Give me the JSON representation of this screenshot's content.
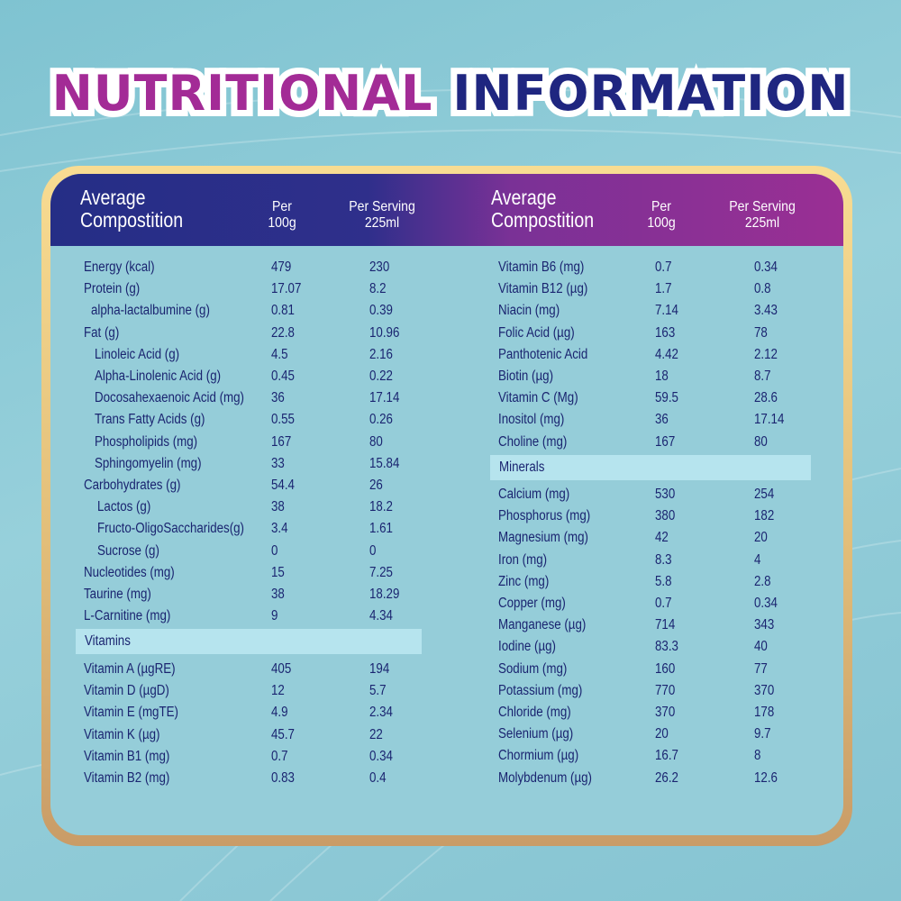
{
  "title": {
    "word1": "NUTRITIONAL",
    "word2": "INFORMATION"
  },
  "colors": {
    "magenta": "#a32b96",
    "navy": "#1f2680",
    "gold": "#e8c47f",
    "band": "#b6e4ee",
    "text": "#1a2470"
  },
  "left": {
    "header": {
      "label1": "Average",
      "label2": "Compostition",
      "per100a": "Per",
      "per100b": "100g",
      "servingA": "Per Serving",
      "servingB": "225ml"
    },
    "rows": [
      {
        "name": "Energy (kcal)",
        "per100": "479",
        "serving": "230",
        "indent": 0
      },
      {
        "name": "Protein (g)",
        "per100": "17.07",
        "serving": "8.2",
        "indent": 0
      },
      {
        "name": "alpha-lactalbumine (g)",
        "per100": "0.81",
        "serving": "0.39",
        "indent": 1
      },
      {
        "name": "Fat (g)",
        "per100": "22.8",
        "serving": "10.96",
        "indent": 0
      },
      {
        "name": "Linoleic Acid (g)",
        "per100": "4.5",
        "serving": "2.16",
        "indent": 2
      },
      {
        "name": "Alpha-Linolenic Acid (g)",
        "per100": "0.45",
        "serving": "0.22",
        "indent": 2
      },
      {
        "name": "Docosahexaenoic Acid (mg)",
        "per100": "36",
        "serving": "17.14",
        "indent": 2
      },
      {
        "name": "Trans Fatty Acids (g)",
        "per100": "0.55",
        "serving": "0.26",
        "indent": 2
      },
      {
        "name": "Phospholipids (mg)",
        "per100": "167",
        "serving": "80",
        "indent": 2
      },
      {
        "name": "Sphingomyelin (mg)",
        "per100": "33",
        "serving": "15.84",
        "indent": 2
      },
      {
        "name": "Carbohydrates (g)",
        "per100": "54.4",
        "serving": "26",
        "indent": 0
      },
      {
        "name": "Lactos (g)",
        "per100": "38",
        "serving": "18.2",
        "indent": 3
      },
      {
        "name": "Fructo-OligoSaccharides(g)",
        "per100": "3.4",
        "serving": "1.61",
        "indent": 3
      },
      {
        "name": "Sucrose (g)",
        "per100": "0",
        "serving": "0",
        "indent": 3
      },
      {
        "name": "Nucleotides (mg)",
        "per100": "15",
        "serving": "7.25",
        "indent": 0
      },
      {
        "name": "Taurine (mg)",
        "per100": "38",
        "serving": "18.29",
        "indent": 0
      },
      {
        "name": "L-Carnitine (mg)",
        "per100": "9",
        "serving": "4.34",
        "indent": 0
      }
    ],
    "section": "Vitamins",
    "rows2": [
      {
        "name": "Vitamin A (µgRE)",
        "per100": "405",
        "serving": "194",
        "indent": 0
      },
      {
        "name": "Vitamin D (µgD)",
        "per100": "12",
        "serving": "5.7",
        "indent": 0
      },
      {
        "name": "Vitamin E (mgTE)",
        "per100": "4.9",
        "serving": "2.34",
        "indent": 0
      },
      {
        "name": "Vitamin K (µg)",
        "per100": "45.7",
        "serving": "22",
        "indent": 0
      },
      {
        "name": "Vitamin B1 (mg)",
        "per100": "0.7",
        "serving": "0.34",
        "indent": 0
      },
      {
        "name": "Vitamin B2 (mg)",
        "per100": "0.83",
        "serving": "0.4",
        "indent": 0
      }
    ]
  },
  "right": {
    "header": {
      "label1": "Average",
      "label2": "Compostition",
      "per100a": "Per",
      "per100b": "100g",
      "servingA": "Per Serving",
      "servingB": "225ml"
    },
    "rows": [
      {
        "name": "Vitamin B6 (mg)",
        "per100": "0.7",
        "serving": "0.34"
      },
      {
        "name": "Vitamin B12 (µg)",
        "per100": "1.7",
        "serving": "0.8"
      },
      {
        "name": "Niacin (mg)",
        "per100": "7.14",
        "serving": "3.43"
      },
      {
        "name": "Folic Acid (µg)",
        "per100": "163",
        "serving": "78"
      },
      {
        "name": "Panthotenic Acid",
        "per100": "4.42",
        "serving": "2.12"
      },
      {
        "name": "Biotin (µg)",
        "per100": "18",
        "serving": "8.7"
      },
      {
        "name": "Vitamin C (Mg)",
        "per100": "59.5",
        "serving": "28.6"
      },
      {
        "name": "Inositol (mg)",
        "per100": "36",
        "serving": "17.14"
      },
      {
        "name": "Choline (mg)",
        "per100": "167",
        "serving": "80"
      }
    ],
    "section": "Minerals",
    "rows2": [
      {
        "name": "Calcium (mg)",
        "per100": "530",
        "serving": "254"
      },
      {
        "name": "Phosphorus (mg)",
        "per100": "380",
        "serving": "182"
      },
      {
        "name": "Magnesium (mg)",
        "per100": "42",
        "serving": "20"
      },
      {
        "name": "Iron (mg)",
        "per100": "8.3",
        "serving": "4"
      },
      {
        "name": "Zinc (mg)",
        "per100": "5.8",
        "serving": "2.8"
      },
      {
        "name": "Copper (mg)",
        "per100": "0.7",
        "serving": "0.34"
      },
      {
        "name": "Manganese (µg)",
        "per100": "714",
        "serving": "343"
      },
      {
        "name": "Iodine (µg)",
        "per100": "83.3",
        "serving": "40"
      },
      {
        "name": "Sodium (mg)",
        "per100": "160",
        "serving": "77"
      },
      {
        "name": "Potassium (mg)",
        "per100": "770",
        "serving": "370"
      },
      {
        "name": "Chloride (mg)",
        "per100": "370",
        "serving": "178"
      },
      {
        "name": "Selenium (µg)",
        "per100": "20",
        "serving": "9.7"
      },
      {
        "name": "Chormium (µg)",
        "per100": "16.7",
        "serving": "8"
      },
      {
        "name": "Molybdenum (µg)",
        "per100": "26.2",
        "serving": "12.6"
      }
    ]
  }
}
